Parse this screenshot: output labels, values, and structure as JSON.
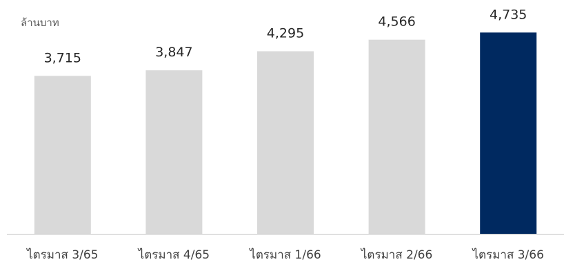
{
  "chart_data": {
    "type": "bar",
    "unit_label": "ล้านบาท",
    "categories": [
      "ไตรมาส 3/65",
      "ไตรมาส 4/65",
      "ไตรมาส 1/66",
      "ไตรมาส 2/66",
      "ไตรมาส 3/66"
    ],
    "values": [
      3715,
      3847,
      4295,
      4566,
      4735
    ],
    "data_labels": [
      "3,715",
      "3,847",
      "4,295",
      "4,566",
      "4,735"
    ],
    "ylim": [
      0,
      5500
    ],
    "grid": false,
    "legend": "none",
    "highlight_index": 4,
    "colors": {
      "bar": "#d9d9d9",
      "highlight": "#002960",
      "axis": "#bfbfbf",
      "label_text": "#262626",
      "category_text": "#404040",
      "unit_text": "#595959"
    }
  }
}
